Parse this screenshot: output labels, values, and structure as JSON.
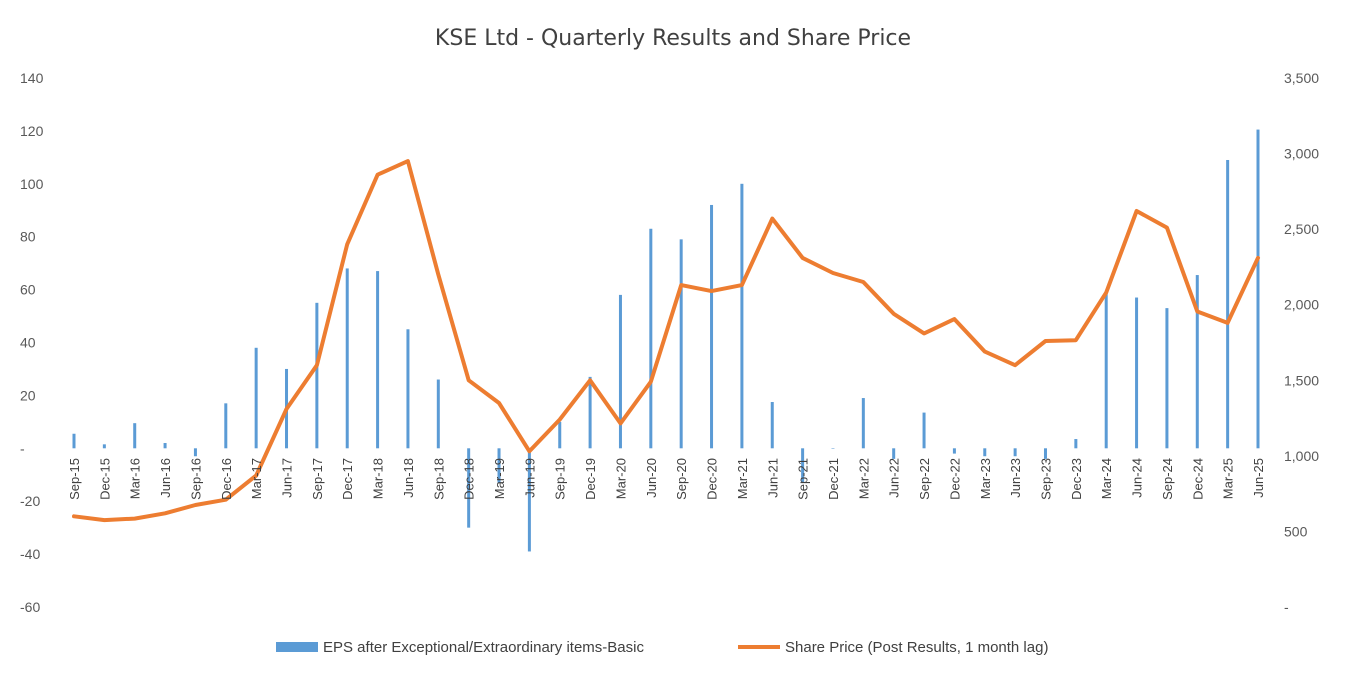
{
  "chart_data": {
    "type": "bar+line",
    "title": "KSE Ltd - Quarterly Results and Share Price",
    "categories": [
      "Sep-15",
      "Dec-15",
      "Mar-16",
      "Jun-16",
      "Sep-16",
      "Dec-16",
      "Mar-17",
      "Jun-17",
      "Sep-17",
      "Dec-17",
      "Mar-18",
      "Jun-18",
      "Sep-18",
      "Dec-18",
      "Mar-19",
      "Jun-19",
      "Sep-19",
      "Dec-19",
      "Mar-20",
      "Jun-20",
      "Sep-20",
      "Dec-20",
      "Mar-21",
      "Jun-21",
      "Sep-21",
      "Dec-21",
      "Mar-22",
      "Jun-22",
      "Sep-22",
      "Dec-22",
      "Mar-23",
      "Jun-23",
      "Sep-23",
      "Dec-23",
      "Mar-24",
      "Jun-24",
      "Sep-24",
      "Dec-24",
      "Mar-25",
      "Jun-25"
    ],
    "series": [
      {
        "name": "EPS after Exceptional/Extraordinary items-Basic",
        "type": "bar",
        "axis": "left",
        "color": "#5b9bd5",
        "values": [
          5.5,
          1.5,
          9.5,
          2,
          -3,
          17,
          38,
          30,
          55,
          68,
          67,
          45,
          26,
          -30,
          -13,
          -39,
          10,
          27,
          58,
          83,
          79,
          92,
          100,
          17.5,
          -13,
          0,
          19,
          -4,
          13.5,
          -2,
          -3,
          -3,
          -4,
          3.5,
          59,
          57,
          53,
          65.5,
          109,
          120.5
        ]
      },
      {
        "name": "Share Price (Post Results, 1 month lag)",
        "type": "line",
        "axis": "right",
        "color": "#ed7d31",
        "values": [
          600,
          575,
          585,
          620,
          675,
          710,
          870,
          1310,
          1600,
          2400,
          2860,
          2950,
          2200,
          1500,
          1350,
          1030,
          1240,
          1500,
          1215,
          1490,
          2130,
          2090,
          2130,
          2570,
          2310,
          2210,
          2150,
          1940,
          1810,
          1905,
          1690,
          1600,
          1760,
          1765,
          2080,
          2620,
          2510,
          1955,
          1880,
          2310
        ]
      }
    ],
    "y_left": {
      "min": -60,
      "max": 140,
      "step": 20,
      "ticks": [
        "140",
        "120",
        "100",
        "80",
        "60",
        "40",
        "20",
        "-",
        "-20",
        "-40",
        "-60"
      ]
    },
    "y_right": {
      "min": 0,
      "max": 3500,
      "step": 500,
      "ticks": [
        "3,500",
        "3,000",
        "2,500",
        "2,000",
        "1,500",
        "1,000",
        "500",
        "-"
      ]
    },
    "legend_position": "bottom",
    "grid": false
  }
}
